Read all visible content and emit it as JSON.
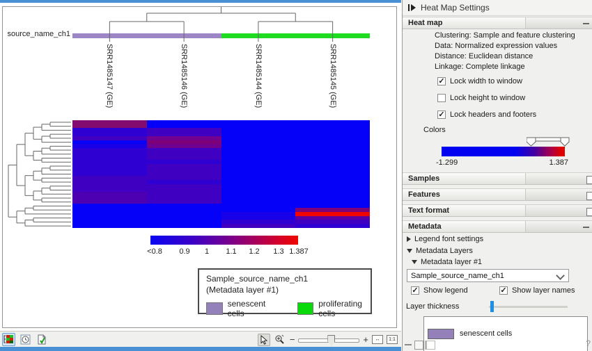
{
  "main_view": {
    "metadata_row_label": "source_name_ch1",
    "columns": [
      "SRR1485147 (GE)",
      "SRR1485146 (GE)",
      "SRR1485144 (GE)",
      "SRR1485145 (GE)"
    ],
    "metadata_groups": [
      {
        "label": "senescent cells",
        "color": "#9d86c6",
        "columns": 2
      },
      {
        "label": "proliferating cells",
        "color": "#20dc20",
        "columns": 2
      }
    ],
    "color_scale": {
      "tick_labels": [
        "<0.8",
        "0.9",
        "1",
        "1.1",
        "1.2",
        "1.3",
        "1.387"
      ]
    },
    "legend": {
      "title": "Sample_source_name_ch1",
      "subtitle": "(Metadata layer #1)",
      "entries": [
        {
          "label": "senescent cells",
          "color": "#9581b9"
        },
        {
          "label": "proliferating cells",
          "color": "#0ad90a"
        }
      ]
    }
  },
  "chart_data": {
    "type": "heatmap",
    "columns": [
      "SRR1485147 (GE)",
      "SRR1485146 (GE)",
      "SRR1485144 (GE)",
      "SRR1485145 (GE)"
    ],
    "column_groups": [
      "senescent cells",
      "senescent cells",
      "proliferating cells",
      "proliferating cells"
    ],
    "value_scale": {
      "min_label": "<0.8",
      "max_label": "1.387",
      "settings_range": [
        -1.299,
        1.387
      ]
    },
    "rows": [
      [
        "#830a6e",
        "#0500f8",
        "#0500f8",
        "#0500f8"
      ],
      [
        "#830a6e",
        "#0500f8",
        "#0500f8",
        "#0500f8"
      ],
      [
        "#2e00d2",
        "#3f00c2",
        "#0500f8",
        "#0500f8"
      ],
      [
        "#2e00d2",
        "#3f00c2",
        "#0500f8",
        "#0500f8"
      ],
      [
        "#3f00c2",
        "#71008e",
        "#0500f8",
        "#0500f8"
      ],
      [
        "#0500f8",
        "#7d0078",
        "#0500f8",
        "#0500f8"
      ],
      [
        "#1800e8",
        "#71008e",
        "#0500f8",
        "#0500f8"
      ],
      [
        "#2e00d2",
        "#3f00c2",
        "#0500f8",
        "#0500f8"
      ],
      [
        "#2e00d2",
        "#3f00c2",
        "#0500f8",
        "#0500f8"
      ],
      [
        "#2e00d2",
        "#3f00c2",
        "#0500f8",
        "#0500f8"
      ],
      [
        "#2e00d2",
        "#2e00d2",
        "#0500f8",
        "#0500f8"
      ],
      [
        "#2e00d2",
        "#3f00c2",
        "#0500f8",
        "#0500f8"
      ],
      [
        "#2e00d2",
        "#3f00c2",
        "#0500f8",
        "#0500f8"
      ],
      [
        "#2e00d2",
        "#3f00c2",
        "#0500f8",
        "#0500f8"
      ],
      [
        "#3f00c2",
        "#3f00c2",
        "#0500f8",
        "#0500f8"
      ],
      [
        "#3f00c2",
        "#2e00d2",
        "#0500f8",
        "#0500f8"
      ],
      [
        "#3f00c2",
        "#3f00c2",
        "#0500f8",
        "#0500f8"
      ],
      [
        "#3f00c2",
        "#3f00c2",
        "#0500f8",
        "#0500f8"
      ],
      [
        "#4d00b2",
        "#3f00c2",
        "#0500f8",
        "#0500f8"
      ],
      [
        "#4d00b2",
        "#3f00c2",
        "#0500f8",
        "#0500f8"
      ],
      [
        "#4d00b2",
        "#3f00c2",
        "#0500f8",
        "#0500f8"
      ],
      [
        "#0500f8",
        "#0500f8",
        "#0500f8",
        "#0500f8"
      ],
      [
        "#0500f8",
        "#0500f8",
        "#0500f8",
        "#7d0078"
      ],
      [
        "#0500f8",
        "#0500f8",
        "#1800e8",
        "#f20400"
      ],
      [
        "#0500f8",
        "#0500f8",
        "#1800e8",
        "#5d00a2"
      ],
      [
        "#0500f8",
        "#0500f8",
        "#2e00d2",
        "#3f00c2"
      ],
      [
        "#0500f8",
        "#0500f8",
        "#3f00c2",
        "#2e00d2"
      ]
    ]
  },
  "side_panel": {
    "title": "Heat Map Settings",
    "heat_map": {
      "tab_label": "Heat map",
      "info_lines": [
        "Clustering: Sample and feature clustering",
        "Data: Normalized expression values",
        "Distance: Euclidean distance",
        "Linkage: Complete linkage"
      ],
      "checkboxes": [
        {
          "label": "Lock width to window",
          "checked": true
        },
        {
          "label": "Lock height to window",
          "checked": false
        },
        {
          "label": "Lock headers and footers",
          "checked": true
        }
      ],
      "colors_label": "Colors",
      "color_min": "-1.299",
      "color_max": "1.387"
    },
    "collapsed_sections": [
      "Samples",
      "Features",
      "Text format"
    ],
    "metadata": {
      "tab_label": "Metadata",
      "legend_font_settings_label": "Legend font settings",
      "layers_label": "Metadata Layers",
      "layer_label": "Metadata layer #1",
      "layer_select_value": "Sample_source_name_ch1",
      "show_legend_label": "Show legend",
      "show_legend_checked": true,
      "show_layer_names_label": "Show layer names",
      "show_layer_names_checked": true,
      "layer_thickness_label": "Layer thickness",
      "legend_items": [
        {
          "label": "senescent cells",
          "color": "#9581b9"
        }
      ]
    },
    "corner_glyph": "?"
  },
  "toolbar": {
    "one_to_one_label": "1:1"
  }
}
